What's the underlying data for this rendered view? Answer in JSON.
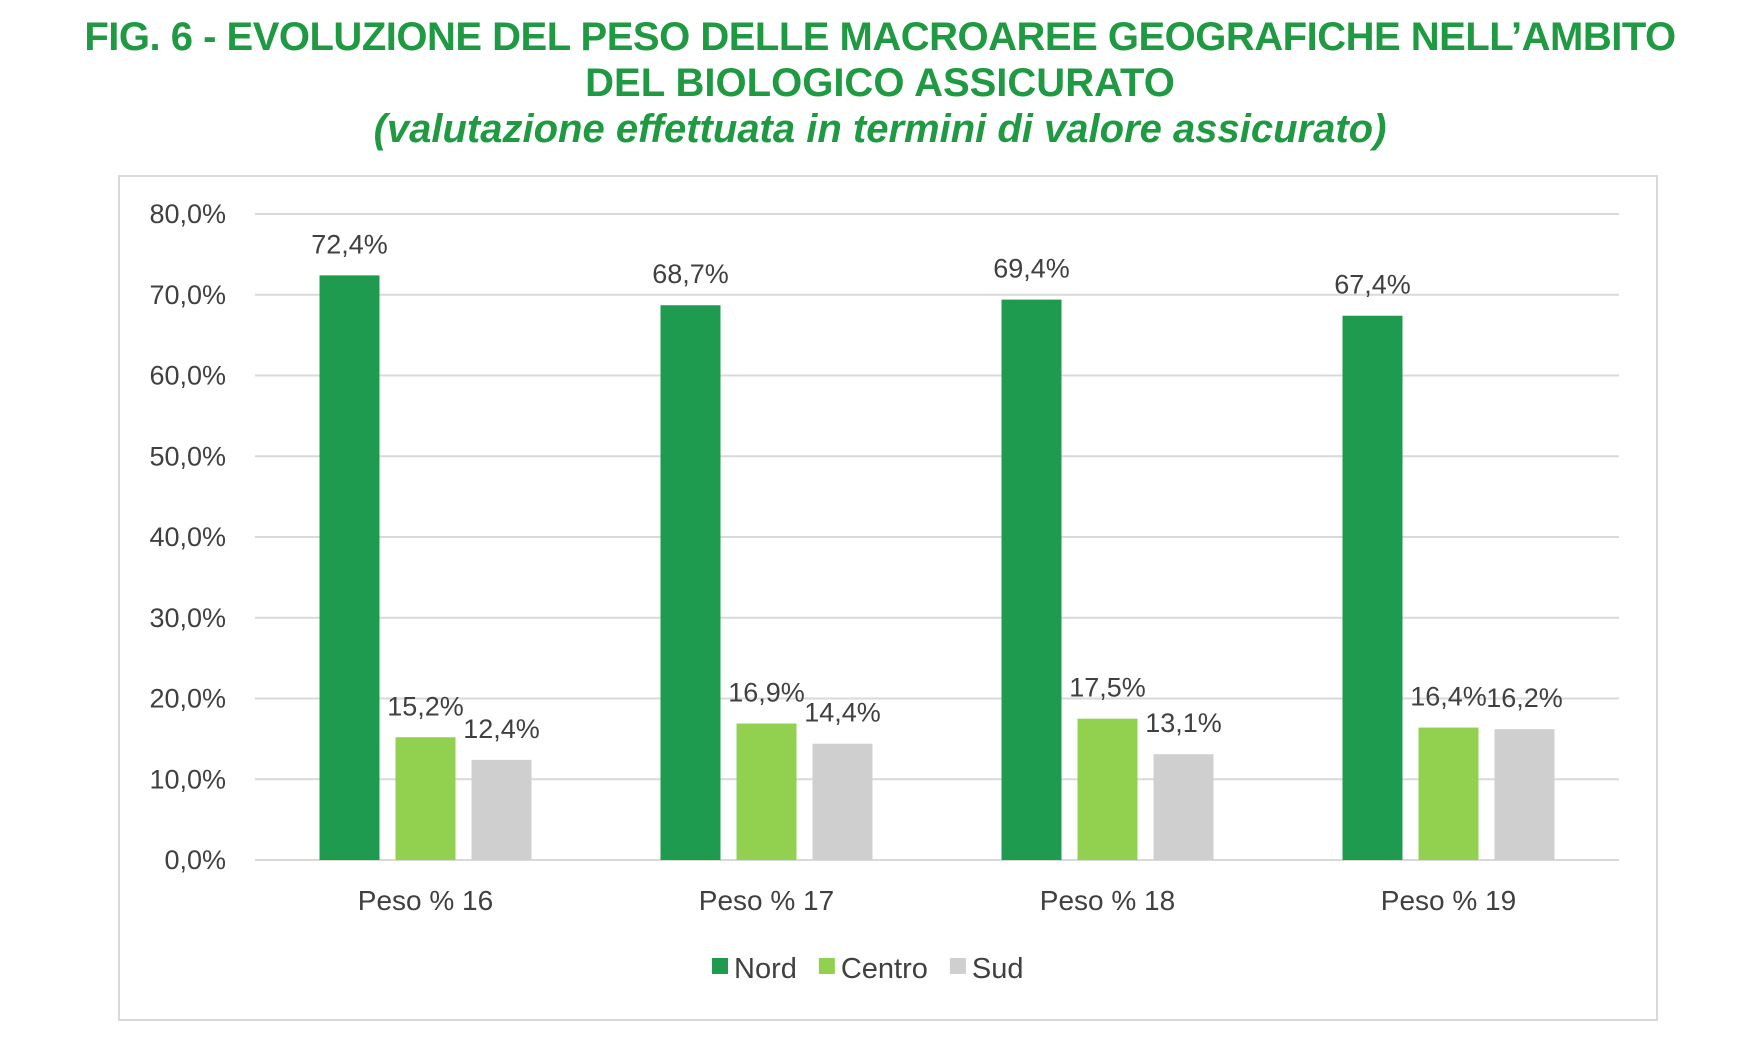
{
  "title": {
    "line1": "FIG. 6 - EVOLUZIONE DEL PESO DELLE MACROAREE GEOGRAFICHE NELL’AMBITO",
    "line2": "DEL BIOLOGICO ASSICURATO",
    "line3": "(valutazione effettuata in termini di valore assicurato)"
  },
  "chart_data": {
    "type": "bar",
    "title": "FIG. 6 - EVOLUZIONE DEL PESO DELLE MACROAREE GEOGRAFICHE NELL’AMBITO DEL BIOLOGICO ASSICURATO (valutazione effettuata in termini di valore assicurato)",
    "categories": [
      "Peso % 16",
      "Peso % 17",
      "Peso % 18",
      "Peso % 19"
    ],
    "series": [
      {
        "name": "Nord",
        "color": "#1e9b4e",
        "values": [
          72.4,
          68.7,
          69.4,
          67.4
        ],
        "labels": [
          "72,4%",
          "68,7%",
          "69,4%",
          "67,4%"
        ]
      },
      {
        "name": "Centro",
        "color": "#92d050",
        "values": [
          15.2,
          16.9,
          17.5,
          16.4
        ],
        "labels": [
          "15,2%",
          "16,9%",
          "17,5%",
          "16,4%"
        ]
      },
      {
        "name": "Sud",
        "color": "#d0cfcf",
        "values": [
          12.4,
          14.4,
          13.1,
          16.2
        ],
        "labels": [
          "12,4%",
          "14,4%",
          "13,1%",
          "16,2%"
        ]
      }
    ],
    "yticks": [
      "0,0%",
      "10,0%",
      "20,0%",
      "30,0%",
      "40,0%",
      "50,0%",
      "60,0%",
      "70,0%",
      "80,0%"
    ],
    "ylim": [
      0,
      80
    ],
    "xlabel": "",
    "ylabel": "",
    "grid": true,
    "legend": "bottom-center"
  }
}
